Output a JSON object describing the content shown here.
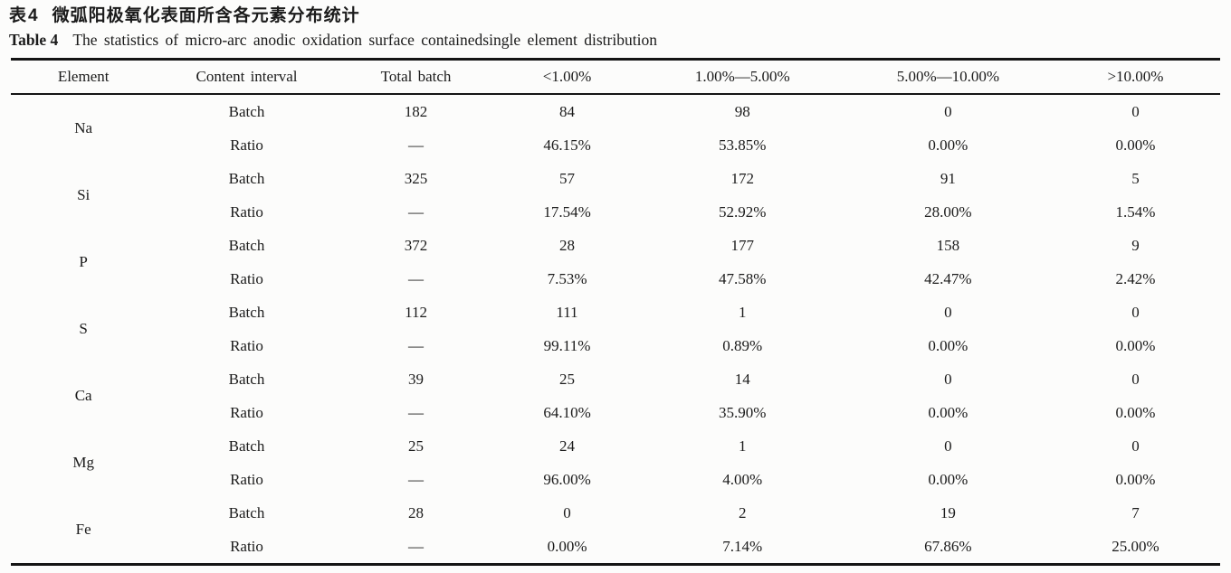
{
  "caption": {
    "zh_label": "表4",
    "zh_text": "微弧阳极氧化表面所含各元素分布统计",
    "en_label": "Table 4",
    "en_text": "The statistics of micro-arc anodic oxidation surface containedsingle element distribution"
  },
  "table": {
    "headers": [
      "Element",
      "Content interval",
      "Total batch",
      "<1.00%",
      "1.00%—5.00%",
      "5.00%—10.00%",
      ">10.00%"
    ],
    "row_types": [
      "Batch",
      "Ratio"
    ],
    "rows": [
      {
        "element": "Na",
        "batch": [
          "182",
          "84",
          "98",
          "0",
          "0"
        ],
        "ratio": [
          "—",
          "46.15%",
          "53.85%",
          "0.00%",
          "0.00%"
        ]
      },
      {
        "element": "Si",
        "batch": [
          "325",
          "57",
          "172",
          "91",
          "5"
        ],
        "ratio": [
          "—",
          "17.54%",
          "52.92%",
          "28.00%",
          "1.54%"
        ]
      },
      {
        "element": "P",
        "batch": [
          "372",
          "28",
          "177",
          "158",
          "9"
        ],
        "ratio": [
          "—",
          "7.53%",
          "47.58%",
          "42.47%",
          "2.42%"
        ]
      },
      {
        "element": "S",
        "batch": [
          "112",
          "111",
          "1",
          "0",
          "0"
        ],
        "ratio": [
          "—",
          "99.11%",
          "0.89%",
          "0.00%",
          "0.00%"
        ]
      },
      {
        "element": "Ca",
        "batch": [
          "39",
          "25",
          "14",
          "0",
          "0"
        ],
        "ratio": [
          "—",
          "64.10%",
          "35.90%",
          "0.00%",
          "0.00%"
        ]
      },
      {
        "element": "Mg",
        "batch": [
          "25",
          "24",
          "1",
          "0",
          "0"
        ],
        "ratio": [
          "—",
          "96.00%",
          "4.00%",
          "0.00%",
          "0.00%"
        ]
      },
      {
        "element": "Fe",
        "batch": [
          "28",
          "0",
          "2",
          "19",
          "7"
        ],
        "ratio": [
          "—",
          "0.00%",
          "7.14%",
          "67.86%",
          "25.00%"
        ]
      }
    ]
  }
}
